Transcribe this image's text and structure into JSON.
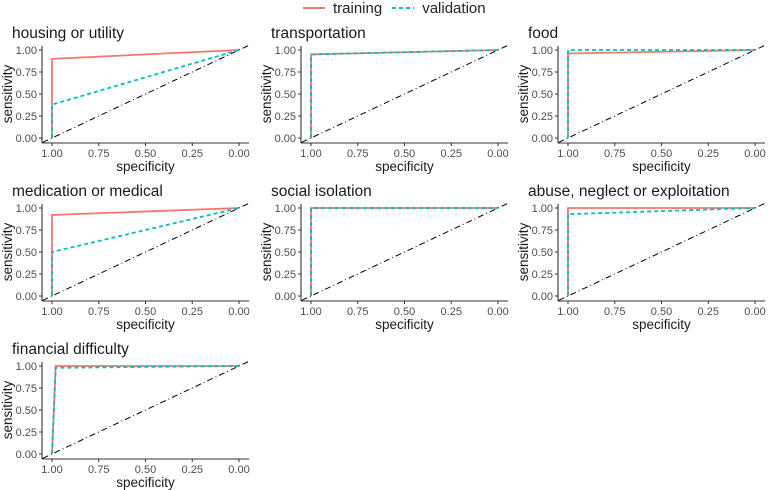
{
  "chart_data": {
    "type": "line",
    "title": "",
    "legend": {
      "position": "top",
      "entries": [
        {
          "name": "training",
          "color": "#F8766D",
          "linestyle": "solid"
        },
        {
          "name": "validation",
          "color": "#00BFC4",
          "linestyle": "dashed"
        }
      ]
    },
    "xlabel": "specificity",
    "ylabel": "sensitivity",
    "xlim": [
      1.0,
      0.0
    ],
    "ylim": [
      0.0,
      1.0
    ],
    "x_reversed": true,
    "x_ticks": [
      "1.00",
      "0.75",
      "0.50",
      "0.25",
      "0.00"
    ],
    "y_ticks": [
      "0.00",
      "0.25",
      "0.50",
      "0.75",
      "1.00"
    ],
    "grid": false,
    "reference_line": {
      "style": "dot-dash",
      "color": "#000000",
      "from": [
        1.0,
        0.0
      ],
      "to": [
        0.0,
        1.0
      ]
    },
    "panels": [
      {
        "title": "housing or utility",
        "series": [
          {
            "name": "training",
            "specificity": [
              1.0,
              1.0,
              0.0
            ],
            "sensitivity": [
              0.0,
              0.9,
              1.0
            ]
          },
          {
            "name": "validation",
            "specificity": [
              1.0,
              1.0,
              0.0
            ],
            "sensitivity": [
              0.0,
              0.38,
              1.0
            ]
          }
        ]
      },
      {
        "title": "transportation",
        "series": [
          {
            "name": "training",
            "specificity": [
              1.0,
              1.0,
              0.0
            ],
            "sensitivity": [
              0.0,
              0.95,
              1.0
            ]
          },
          {
            "name": "validation",
            "specificity": [
              1.0,
              1.0,
              0.0
            ],
            "sensitivity": [
              0.0,
              0.95,
              1.0
            ]
          }
        ]
      },
      {
        "title": "food",
        "series": [
          {
            "name": "training",
            "specificity": [
              1.0,
              1.0,
              0.0
            ],
            "sensitivity": [
              0.0,
              0.96,
              1.0
            ]
          },
          {
            "name": "validation",
            "specificity": [
              1.0,
              1.0,
              0.0
            ],
            "sensitivity": [
              0.0,
              1.0,
              1.0
            ]
          }
        ]
      },
      {
        "title": "medication or medical",
        "series": [
          {
            "name": "training",
            "specificity": [
              1.0,
              1.0,
              0.0
            ],
            "sensitivity": [
              0.0,
              0.92,
              1.0
            ]
          },
          {
            "name": "validation",
            "specificity": [
              1.0,
              1.0,
              0.0
            ],
            "sensitivity": [
              0.0,
              0.5,
              1.0
            ]
          }
        ]
      },
      {
        "title": "social isolation",
        "series": [
          {
            "name": "training",
            "specificity": [
              1.0,
              1.0,
              0.0
            ],
            "sensitivity": [
              0.0,
              1.0,
              1.0
            ]
          },
          {
            "name": "validation",
            "specificity": [
              1.0,
              1.0,
              0.0
            ],
            "sensitivity": [
              0.0,
              1.0,
              1.0
            ]
          }
        ]
      },
      {
        "title": "abuse, neglect or exploitation",
        "series": [
          {
            "name": "training",
            "specificity": [
              1.0,
              1.0,
              0.0
            ],
            "sensitivity": [
              0.0,
              1.0,
              1.0
            ]
          },
          {
            "name": "validation",
            "specificity": [
              1.0,
              1.0,
              0.0
            ],
            "sensitivity": [
              0.0,
              0.93,
              1.0
            ]
          }
        ]
      },
      {
        "title": "financial difficulty",
        "series": [
          {
            "name": "training",
            "specificity": [
              1.0,
              0.98,
              0.0
            ],
            "sensitivity": [
              0.0,
              1.0,
              1.0
            ]
          },
          {
            "name": "validation",
            "specificity": [
              1.0,
              0.98,
              0.0
            ],
            "sensitivity": [
              0.0,
              0.98,
              1.0
            ]
          }
        ]
      }
    ]
  }
}
